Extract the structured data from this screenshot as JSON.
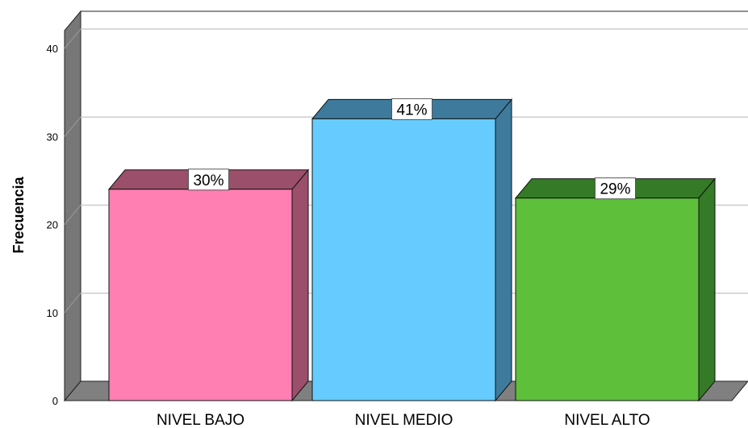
{
  "chart_data": {
    "type": "bar",
    "style": "3d-bar",
    "categories": [
      "NIVEL BAJO",
      "NIVEL MEDIO",
      "NIVEL ALTO"
    ],
    "values": [
      24,
      32,
      23
    ],
    "data_labels": [
      "30%",
      "41%",
      "29%"
    ],
    "ylabel": "Frecuencia",
    "ylim": [
      0,
      40
    ],
    "yticks": [
      0,
      10,
      20,
      30,
      40
    ],
    "grid": true,
    "legend": "none",
    "colors": {
      "front": [
        "#ff7fb2",
        "#66ccff",
        "#5dbf3a"
      ],
      "side": [
        "#9b4f6a",
        "#3e7a9c",
        "#357a26"
      ],
      "wall": "#777777",
      "floor": "#808080",
      "gridline": "#cccccc"
    }
  }
}
